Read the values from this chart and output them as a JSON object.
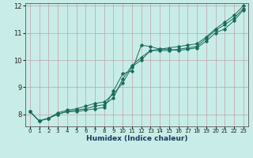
{
  "title": "",
  "xlabel": "Humidex (Indice chaleur)",
  "ylabel": "",
  "bg_color": "#c8ede8",
  "grid_color": "#c0a0a8",
  "line_color": "#1a6b5a",
  "xlim": [
    -0.5,
    23.5
  ],
  "ylim": [
    7.55,
    12.1
  ],
  "yticks": [
    8,
    9,
    10,
    11,
    12
  ],
  "xticks": [
    0,
    1,
    2,
    3,
    4,
    5,
    6,
    7,
    8,
    9,
    10,
    11,
    12,
    13,
    14,
    15,
    16,
    17,
    18,
    19,
    20,
    21,
    22,
    23
  ],
  "lines": [
    [
      8.1,
      7.75,
      7.85,
      8.0,
      8.1,
      8.1,
      8.15,
      8.2,
      8.25,
      8.85,
      9.5,
      9.6,
      10.55,
      10.5,
      10.4,
      10.4,
      10.35,
      10.4,
      10.45,
      10.7,
      11.0,
      11.15,
      11.45,
      11.85
    ],
    [
      8.1,
      7.75,
      7.85,
      8.0,
      8.1,
      8.15,
      8.2,
      8.3,
      8.35,
      8.6,
      9.3,
      9.8,
      10.1,
      10.35,
      10.35,
      10.35,
      10.4,
      10.45,
      10.5,
      10.8,
      11.1,
      11.3,
      11.55,
      11.9
    ],
    [
      8.1,
      7.75,
      7.85,
      8.05,
      8.15,
      8.2,
      8.3,
      8.4,
      8.45,
      8.75,
      9.15,
      9.75,
      10.0,
      10.35,
      10.4,
      10.45,
      10.5,
      10.55,
      10.6,
      10.85,
      11.15,
      11.4,
      11.65,
      12.0
    ]
  ]
}
